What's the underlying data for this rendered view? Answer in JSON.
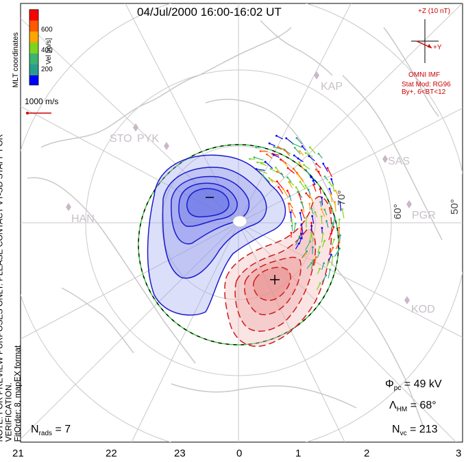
{
  "title": "04/Jul/2000  16:00-16:02  UT",
  "side_note_line1": "NOTE: FOR PREVIEW PURPOSES ONLY. PLEASE CONTACT VT-SD STAFF FOR VERIFICATION.",
  "side_note_line2": "FitOrder: 8, mapEX format",
  "coordinates_label": "MLT coordinates",
  "colorbar": {
    "unit_label": "Vel [m/s]",
    "ticks": [
      "600",
      "400",
      "200"
    ],
    "colors": [
      "#0000ff",
      "#2a9d8f",
      "#3cb371",
      "#7fd320",
      "#ffa500",
      "#ff5a00",
      "#ff0000"
    ]
  },
  "reference_vector_label": "1000 m/s",
  "imf": {
    "z_label": "+Z (10 nT)",
    "y_label": "+Y",
    "source": "OMNI IMF",
    "model_line1": "Stat Mod: RG96",
    "model_line2": "By+, 6<BT<12"
  },
  "stations": [
    "KAP",
    "STO",
    "PYK",
    "SAS",
    "HAN",
    "PGR",
    "KOD"
  ],
  "mlat_labels": [
    "70°",
    "60°",
    "50°"
  ],
  "mlt_ticks": [
    "21",
    "22",
    "23",
    "0",
    "1",
    "2",
    "3"
  ],
  "stats": {
    "phi_pc_value": "= 49 kV",
    "lambda_hm_value": "= 68°",
    "n_vc_value": "= 213",
    "n_rads_value": "= 7"
  },
  "potential_markers": {
    "min": "–",
    "max": "+"
  },
  "colors": {
    "negative_cell": "#1a1acd",
    "positive_cell": "#cc1a1a",
    "hmb_boundary": "#33cc33",
    "coastline": "#c8c8c8",
    "grid": "#c8c8c8"
  }
}
